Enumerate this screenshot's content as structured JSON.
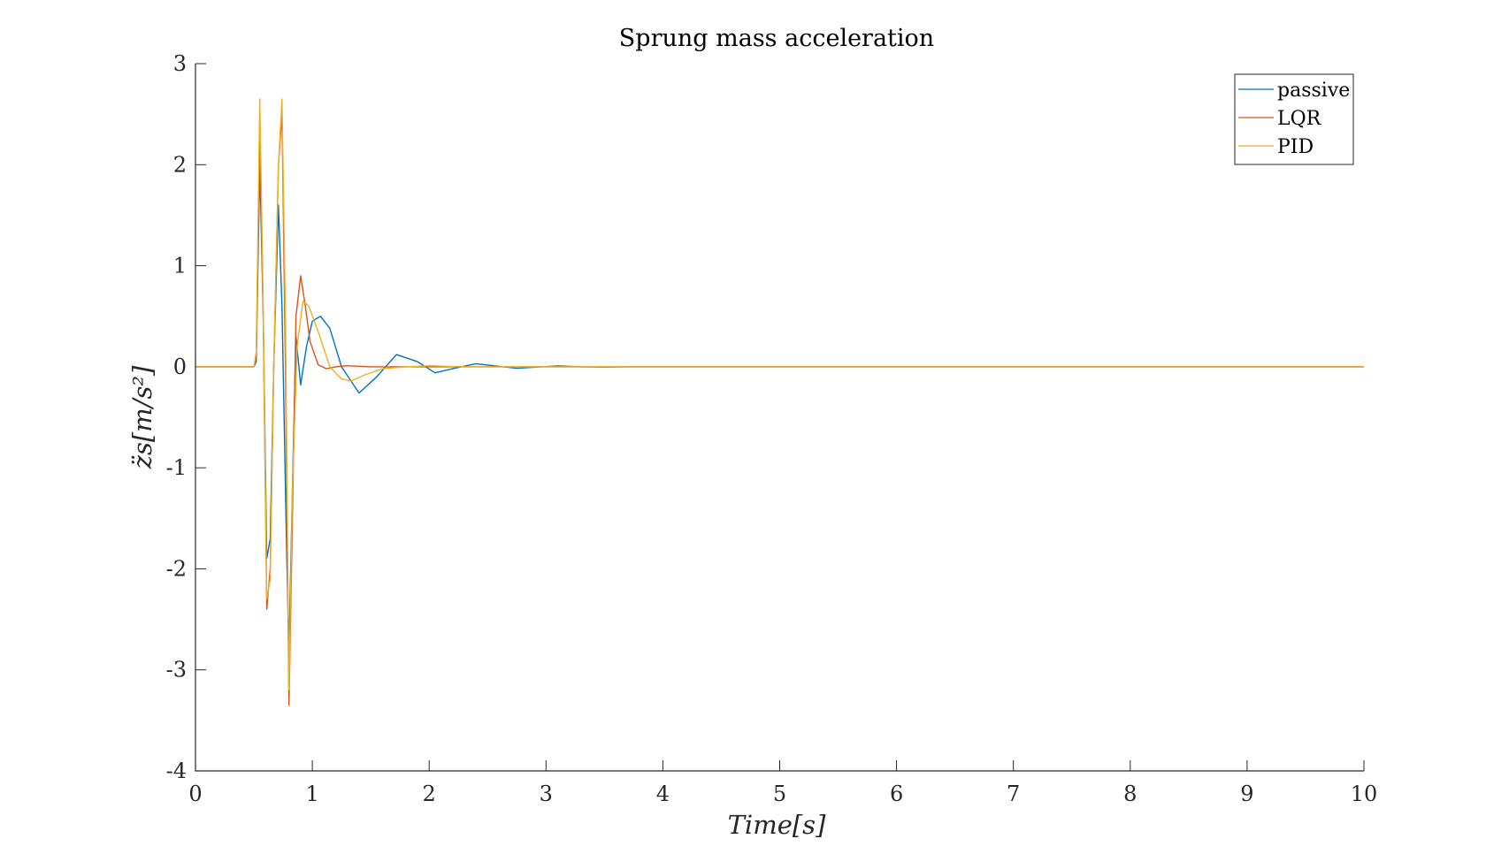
{
  "chart_data": {
    "type": "line",
    "title": "Sprung mass acceleration",
    "xlabel": "Time[s]",
    "ylabel": "z̈s[m/s²]",
    "xlim": [
      0,
      10
    ],
    "ylim": [
      -4,
      3
    ],
    "xticks": [
      0,
      1,
      2,
      3,
      4,
      5,
      6,
      7,
      8,
      9,
      10
    ],
    "yticks": [
      -4,
      -3,
      -2,
      -1,
      0,
      1,
      2,
      3
    ],
    "grid": false,
    "legend_position": "top-right",
    "series": [
      {
        "name": "passive",
        "color": "#0072BD",
        "points": [
          [
            0,
            0
          ],
          [
            0.5,
            0
          ],
          [
            0.52,
            0.05
          ],
          [
            0.55,
            2.0
          ],
          [
            0.58,
            0.5
          ],
          [
            0.61,
            -1.9
          ],
          [
            0.64,
            -1.7
          ],
          [
            0.67,
            0.0
          ],
          [
            0.71,
            1.6
          ],
          [
            0.74,
            0.6
          ],
          [
            0.78,
            -1.8
          ],
          [
            0.8,
            -2.8
          ],
          [
            0.83,
            -1.2
          ],
          [
            0.86,
            0.3
          ],
          [
            0.9,
            -0.18
          ],
          [
            0.95,
            0.2
          ],
          [
            1.0,
            0.45
          ],
          [
            1.07,
            0.5
          ],
          [
            1.15,
            0.38
          ],
          [
            1.25,
            0.0
          ],
          [
            1.4,
            -0.26
          ],
          [
            1.55,
            -0.1
          ],
          [
            1.72,
            0.12
          ],
          [
            1.9,
            0.05
          ],
          [
            2.05,
            -0.06
          ],
          [
            2.2,
            -0.02
          ],
          [
            2.4,
            0.03
          ],
          [
            2.55,
            0.01
          ],
          [
            2.75,
            -0.015
          ],
          [
            2.9,
            -0.005
          ],
          [
            3.1,
            0.008
          ],
          [
            3.3,
            0.0
          ],
          [
            3.5,
            -0.004
          ],
          [
            3.7,
            0.0
          ],
          [
            10,
            0
          ]
        ]
      },
      {
        "name": "LQR",
        "color": "#D95319",
        "points": [
          [
            0,
            0
          ],
          [
            0.5,
            0
          ],
          [
            0.52,
            0.1
          ],
          [
            0.55,
            2.3
          ],
          [
            0.58,
            0.5
          ],
          [
            0.61,
            -2.4
          ],
          [
            0.64,
            -2.0
          ],
          [
            0.67,
            0.0
          ],
          [
            0.71,
            2.0
          ],
          [
            0.74,
            2.5
          ],
          [
            0.77,
            0.0
          ],
          [
            0.8,
            -3.35
          ],
          [
            0.83,
            -1.5
          ],
          [
            0.86,
            0.5
          ],
          [
            0.9,
            0.9
          ],
          [
            0.94,
            0.6
          ],
          [
            0.98,
            0.25
          ],
          [
            1.05,
            0.02
          ],
          [
            1.12,
            -0.02
          ],
          [
            1.2,
            0.0
          ],
          [
            1.3,
            0.01
          ],
          [
            1.5,
            0.0
          ],
          [
            10,
            0
          ]
        ]
      },
      {
        "name": "PID",
        "color": "#EDB120",
        "points": [
          [
            0,
            0
          ],
          [
            0.5,
            0
          ],
          [
            0.52,
            0.15
          ],
          [
            0.55,
            2.65
          ],
          [
            0.58,
            0.6
          ],
          [
            0.61,
            -2.3
          ],
          [
            0.64,
            -2.1
          ],
          [
            0.67,
            0.0
          ],
          [
            0.71,
            2.0
          ],
          [
            0.74,
            2.65
          ],
          [
            0.77,
            0.5
          ],
          [
            0.8,
            -3.2
          ],
          [
            0.83,
            -1.2
          ],
          [
            0.87,
            0.2
          ],
          [
            0.92,
            0.65
          ],
          [
            0.97,
            0.6
          ],
          [
            1.05,
            0.35
          ],
          [
            1.15,
            0.0
          ],
          [
            1.25,
            -0.12
          ],
          [
            1.33,
            -0.14
          ],
          [
            1.45,
            -0.08
          ],
          [
            1.6,
            -0.02
          ],
          [
            1.8,
            0.0
          ],
          [
            2.0,
            0.01
          ],
          [
            2.3,
            0.0
          ],
          [
            10,
            0
          ]
        ]
      }
    ]
  }
}
